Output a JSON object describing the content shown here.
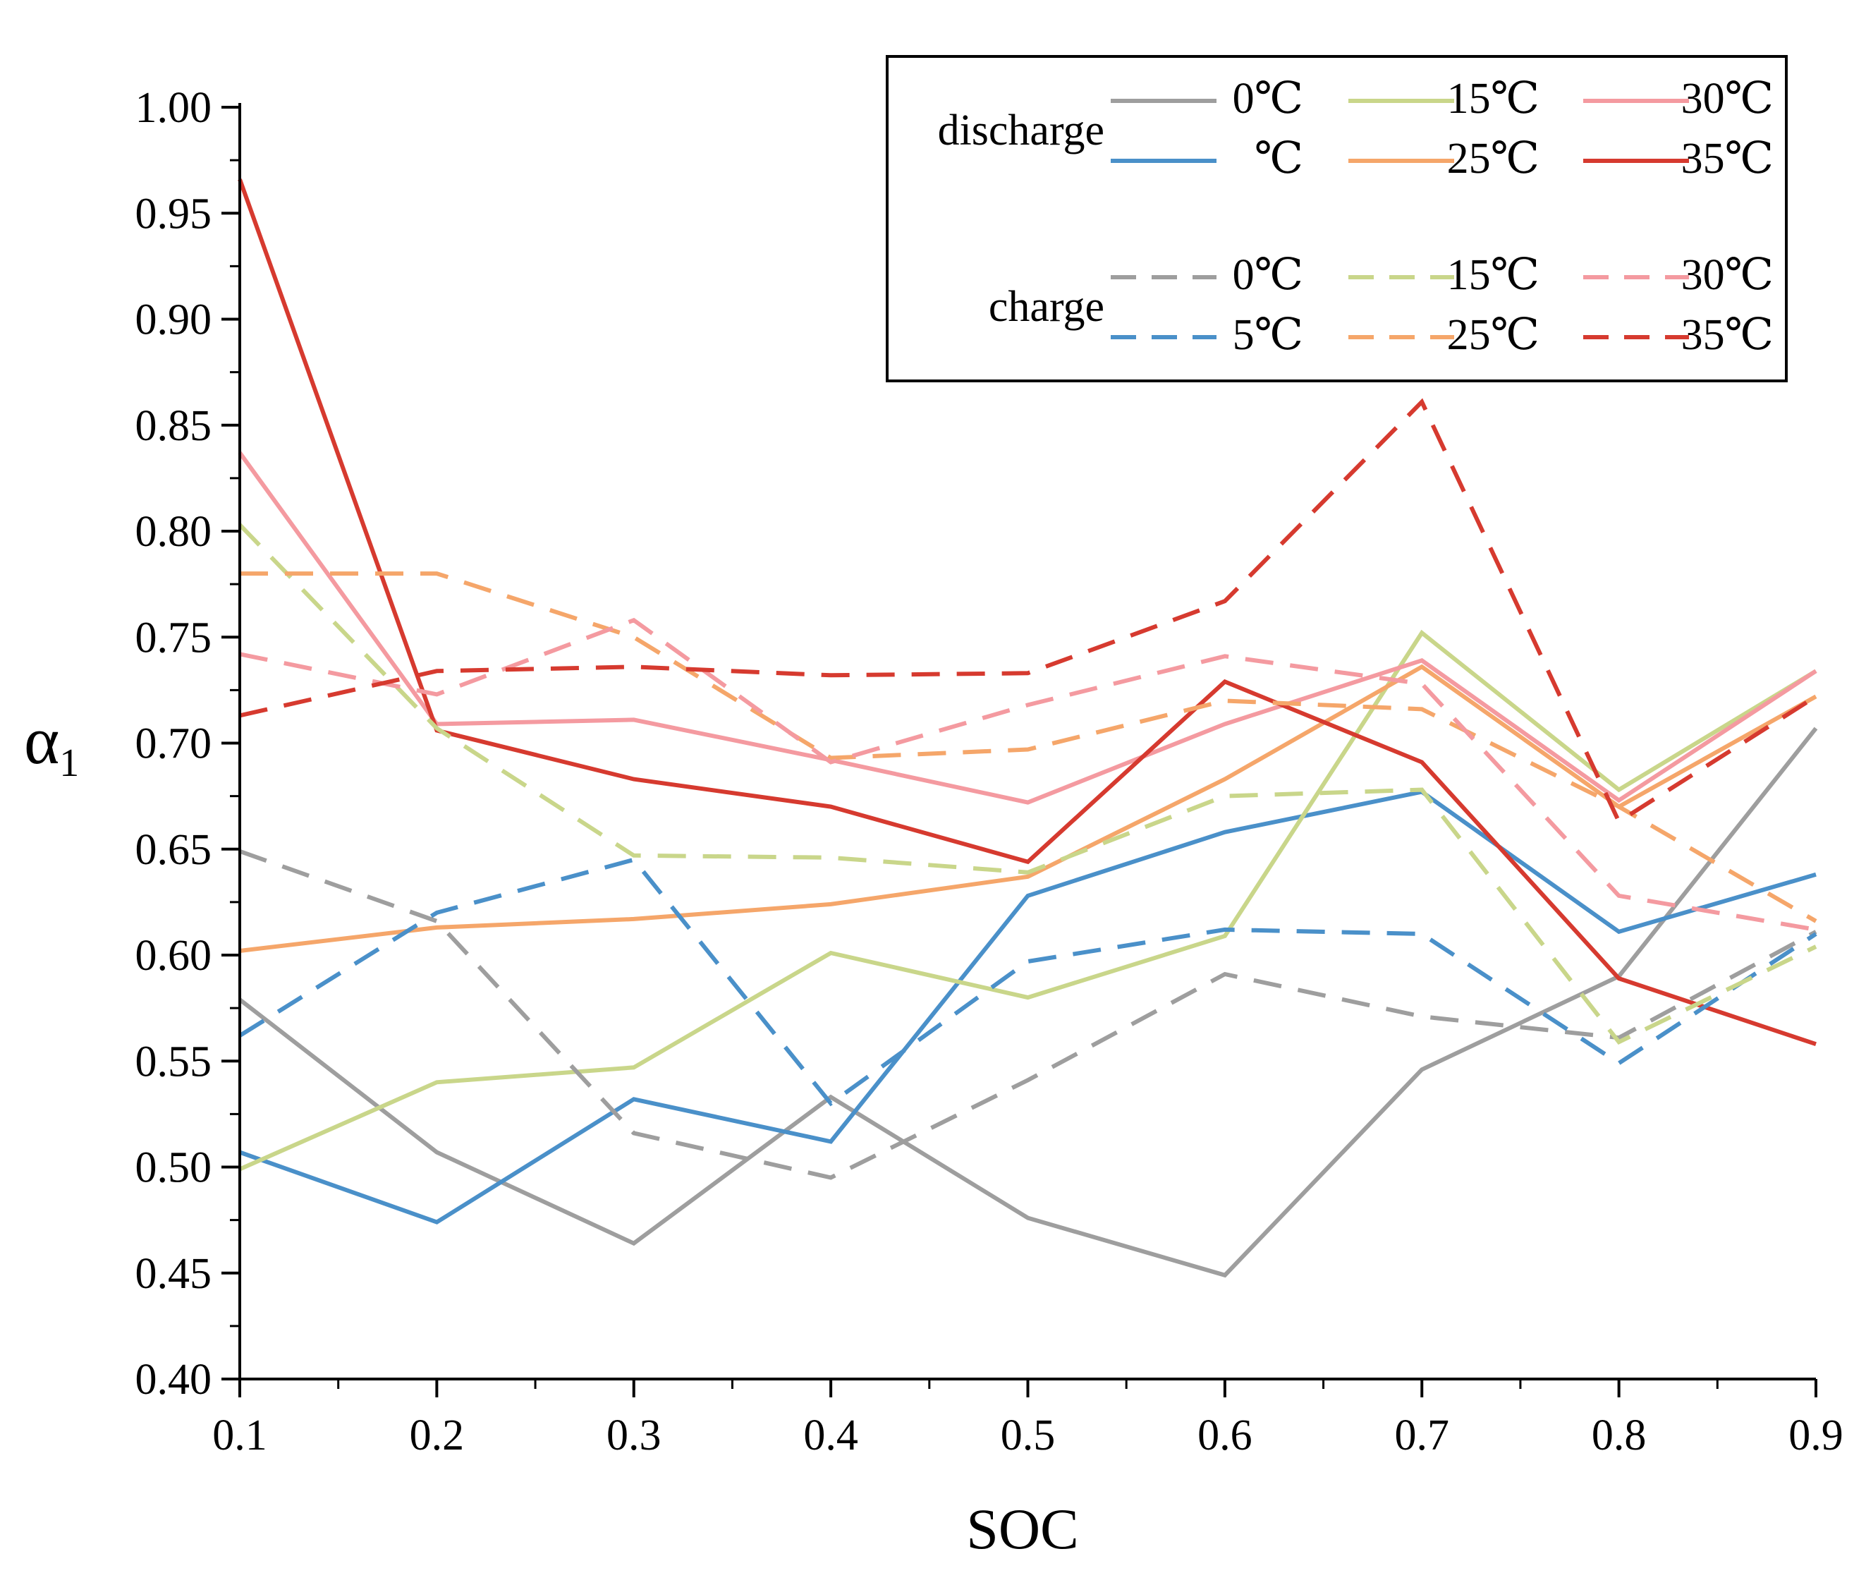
{
  "chart_data": {
    "type": "line",
    "title": "",
    "xlabel": "SOC",
    "ylabel": "α",
    "ylabel_sub": "1",
    "xlim": [
      0.1,
      0.9
    ],
    "ylim": [
      0.4,
      1.0
    ],
    "x": [
      0.1,
      0.2,
      0.3,
      0.4,
      0.5,
      0.6,
      0.7,
      0.8,
      0.9
    ],
    "x_tick_labels": [
      "0.1",
      "0.2",
      "0.3",
      "0.4",
      "0.5",
      "0.6",
      "0.7",
      "0.8",
      "0.9"
    ],
    "y_ticks": [
      0.4,
      0.45,
      0.5,
      0.55,
      0.6,
      0.65,
      0.7,
      0.75,
      0.8,
      0.85,
      0.9,
      0.95,
      1.0
    ],
    "y_tick_labels": [
      "0.40",
      "0.45",
      "0.50",
      "0.55",
      "0.60",
      "0.65",
      "0.70",
      "0.75",
      "0.80",
      "0.85",
      "0.90",
      "0.95",
      "1.00"
    ],
    "grid": false,
    "legend": {
      "placement": "top-right",
      "groups": [
        {
          "label": "discharge",
          "entries": [
            "0℃",
            "℃",
            "15℃",
            "25℃",
            "30℃",
            "35℃"
          ]
        },
        {
          "label": "charge",
          "entries": [
            "0℃",
            "5℃",
            "15℃",
            "25℃",
            "30℃",
            "35℃"
          ]
        }
      ]
    },
    "series": [
      {
        "name": "discharge 0℃",
        "group": "discharge",
        "label": "0℃",
        "color": "#9e9e9e",
        "dashed": false,
        "values": [
          0.579,
          0.507,
          0.464,
          0.533,
          0.476,
          0.449,
          0.546,
          0.59,
          0.707
        ]
      },
      {
        "name": "discharge ℃",
        "group": "discharge",
        "label": "℃",
        "color": "#4a90c9",
        "dashed": false,
        "values": [
          0.507,
          0.474,
          0.532,
          0.512,
          0.628,
          0.658,
          0.677,
          0.611,
          0.638
        ]
      },
      {
        "name": "discharge 15℃",
        "group": "discharge",
        "label": "15℃",
        "color": "#c9d68a",
        "dashed": false,
        "values": [
          0.499,
          0.54,
          0.547,
          0.601,
          0.58,
          0.609,
          0.752,
          0.678,
          0.734
        ]
      },
      {
        "name": "discharge 25℃",
        "group": "discharge",
        "label": "25℃",
        "color": "#f5a66a",
        "dashed": false,
        "values": [
          0.602,
          0.613,
          0.617,
          0.624,
          0.637,
          0.683,
          0.736,
          0.67,
          0.722
        ]
      },
      {
        "name": "discharge 30℃",
        "group": "discharge",
        "label": "30℃",
        "color": "#f49aa0",
        "dashed": false,
        "values": [
          0.837,
          0.709,
          0.711,
          0.692,
          0.672,
          0.709,
          0.739,
          0.673,
          0.734
        ]
      },
      {
        "name": "discharge 35℃",
        "group": "discharge",
        "label": "35℃",
        "color": "#d63a2f",
        "dashed": false,
        "values": [
          0.966,
          0.706,
          0.683,
          0.67,
          0.644,
          0.729,
          0.691,
          0.589,
          0.558
        ]
      },
      {
        "name": "charge 0℃",
        "group": "charge",
        "label": "0℃",
        "color": "#9e9e9e",
        "dashed": true,
        "values": [
          0.649,
          0.616,
          0.516,
          0.495,
          0.541,
          0.591,
          0.571,
          0.561,
          0.611
        ]
      },
      {
        "name": "charge 5℃",
        "group": "charge",
        "label": "5℃",
        "color": "#4a90c9",
        "dashed": true,
        "values": [
          0.562,
          0.62,
          0.645,
          0.53,
          0.597,
          0.612,
          0.61,
          0.549,
          0.61
        ]
      },
      {
        "name": "charge 15℃",
        "group": "charge",
        "label": "15℃",
        "color": "#c9d68a",
        "dashed": true,
        "values": [
          0.803,
          0.707,
          0.647,
          0.646,
          0.639,
          0.675,
          0.678,
          0.559,
          0.604
        ]
      },
      {
        "name": "charge 25℃",
        "group": "charge",
        "label": "25℃",
        "color": "#f5a66a",
        "dashed": true,
        "values": [
          0.78,
          0.78,
          0.75,
          0.693,
          0.697,
          0.72,
          0.716,
          0.67,
          0.616
        ]
      },
      {
        "name": "charge 30℃",
        "group": "charge",
        "label": "30℃",
        "color": "#f49aa0",
        "dashed": true,
        "values": [
          0.742,
          0.723,
          0.758,
          0.691,
          0.718,
          0.741,
          0.728,
          0.628,
          0.612
        ]
      },
      {
        "name": "charge 35℃",
        "group": "charge",
        "label": "35℃",
        "color": "#d63a2f",
        "dashed": true,
        "values": [
          0.713,
          0.734,
          0.736,
          0.732,
          0.733,
          0.767,
          0.861,
          0.663,
          0.722
        ]
      }
    ]
  }
}
